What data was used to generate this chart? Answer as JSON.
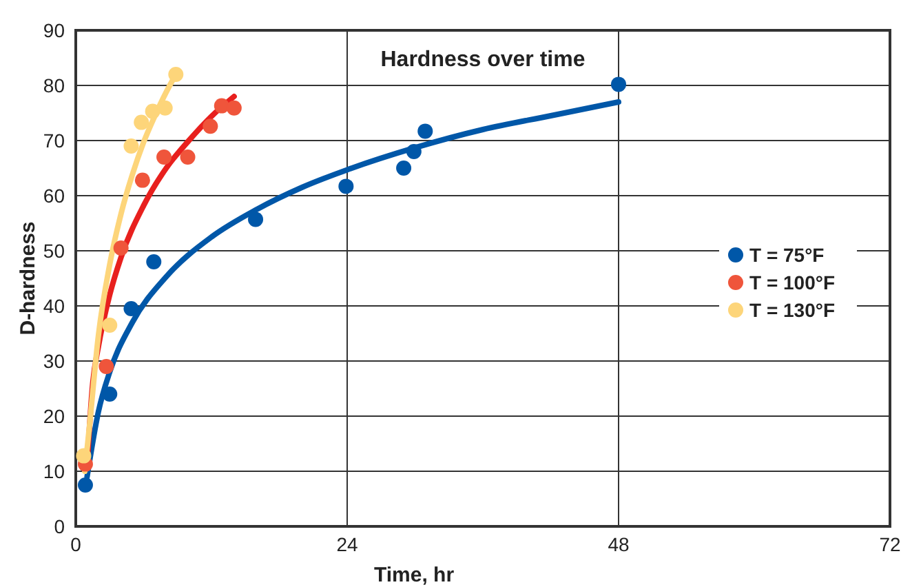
{
  "chart_data": {
    "type": "scatter",
    "title": "Hardness over time",
    "xlabel": "Time, hr",
    "ylabel": "D-hardness",
    "xlim": [
      0,
      72
    ],
    "xticks": [
      0,
      24,
      48,
      72
    ],
    "ylim": [
      0,
      90
    ],
    "yticks": [
      0,
      10,
      20,
      30,
      40,
      50,
      60,
      70,
      80,
      90
    ],
    "grid": true,
    "legend": "right",
    "marker": "circle",
    "series": [
      {
        "name": "T = 75°F",
        "color": "#0057a8",
        "x": [
          0.85,
          3,
          4.9,
          6.9,
          15.9,
          23.9,
          29,
          29.9,
          30.9,
          48
        ],
        "values": [
          7.5,
          24,
          39.5,
          48,
          55.7,
          61.7,
          65,
          68,
          71.7,
          80.2
        ]
      },
      {
        "name": "T = 100°F",
        "color": "#ef553b",
        "x": [
          0.85,
          2.7,
          4,
          5.9,
          7.8,
          9.9,
          11.9,
          12.9,
          14
        ],
        "values": [
          11.3,
          29,
          50.5,
          62.8,
          67,
          67,
          72.6,
          76.3,
          75.9
        ]
      },
      {
        "name": "T = 130°F",
        "color": "#fdd57a",
        "x": [
          0.7,
          3,
          4.9,
          5.8,
          6.8,
          7.9,
          8.85
        ],
        "values": [
          12.8,
          36.5,
          69,
          73.3,
          75.3,
          75.9,
          82
        ]
      },
      {
        "type": "line",
        "color": "#0057a8",
        "marker": "none",
        "line_style": "solid",
        "x": [
          1,
          2,
          3,
          5,
          8,
          12,
          16,
          20,
          24,
          30,
          36,
          42,
          48
        ],
        "values": [
          9,
          20.8,
          28,
          37,
          45.3,
          52.5,
          57.5,
          61.5,
          64.7,
          68.7,
          72,
          74.5,
          77
        ]
      },
      {
        "type": "line",
        "color": "#e8201e",
        "marker": "none",
        "line_style": "solid",
        "x": [
          1,
          1.5,
          2,
          3,
          4,
          6,
          8,
          10,
          12,
          14
        ],
        "values": [
          11,
          26,
          32.6,
          42,
          48.8,
          58.2,
          65,
          70,
          74.4,
          78
        ]
      },
      {
        "type": "line",
        "color": "#fdd57a",
        "marker": "none",
        "line_style": "solid",
        "x": [
          0.8,
          1.2,
          2,
          3,
          4,
          5,
          6,
          7,
          8,
          8.85
        ],
        "values": [
          10,
          18,
          34.6,
          47.5,
          56.7,
          63.8,
          69.7,
          74.5,
          78.8,
          82
        ]
      }
    ]
  }
}
